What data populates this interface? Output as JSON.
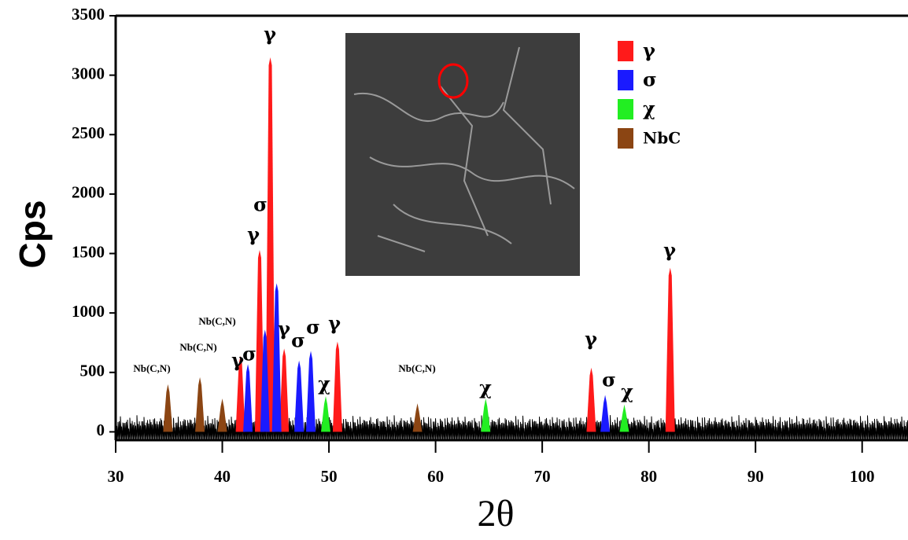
{
  "chart_data": {
    "type": "xrd",
    "x_label": "2θ",
    "y_label": "Cps",
    "xlim": [
      30,
      104.3
    ],
    "ylim": [
      -70,
      3500
    ],
    "xticks": [
      30,
      40,
      50,
      60,
      70,
      80,
      90,
      100
    ],
    "yticks": [
      0,
      500,
      1000,
      1500,
      2000,
      2500,
      3000,
      3500
    ],
    "legend": "top-right",
    "series": [
      {
        "name": "γ",
        "color": "#ff1a1a",
        "x": [
          41.7,
          43.5,
          44.5,
          45.8,
          50.8,
          74.6,
          82.0
        ],
        "values": [
          640,
          1530,
          3150,
          700,
          760,
          540,
          1380
        ]
      },
      {
        "name": "σ",
        "color": "#1a1aff",
        "x": [
          42.4,
          44.0,
          45.1,
          47.2,
          48.3,
          75.9
        ],
        "values": [
          570,
          860,
          1250,
          600,
          680,
          310
        ]
      },
      {
        "name": "χ",
        "color": "#22ee22",
        "x": [
          49.7,
          64.7,
          77.7
        ],
        "values": [
          300,
          280,
          230
        ]
      },
      {
        "name": "NbC",
        "color": "#8b4513",
        "x": [
          34.9,
          37.9,
          40.0,
          58.3
        ],
        "values": [
          400,
          460,
          280,
          240
        ]
      }
    ],
    "annotations": [
      "γ",
      "σ",
      "γ",
      "γ",
      "σ",
      "γ",
      "σ",
      "σ",
      "γ",
      "χ",
      "χ",
      "γ",
      "σ",
      "χ",
      "γ",
      "Nb(C,N)",
      "Nb(C,N)",
      "Nb(C,N)",
      "Nb(C,N)"
    ]
  }
}
